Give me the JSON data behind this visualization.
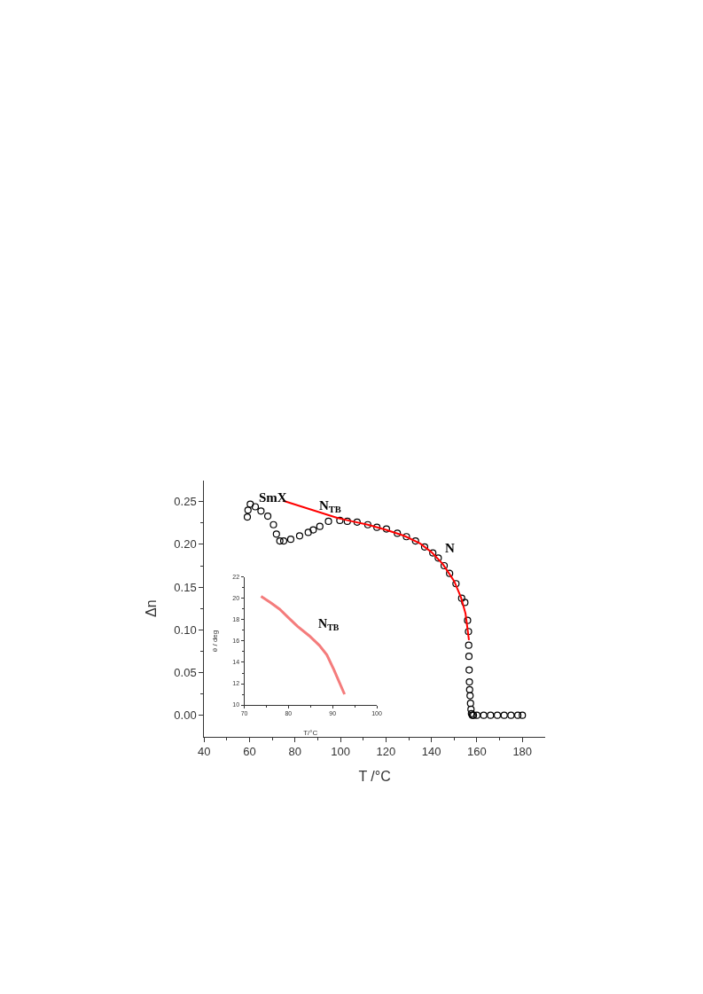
{
  "chart_data": [
    {
      "type": "scatter",
      "xlabel": "T /°C",
      "ylabel": "Δn",
      "xlim": [
        40,
        190
      ],
      "xticks": [
        40,
        60,
        80,
        100,
        120,
        140,
        160,
        180
      ],
      "ylim": [
        -0.025,
        0.275
      ],
      "yticks": [
        {
          "value": 0,
          "label": "0.00"
        },
        {
          "value": 0.05,
          "label": "0.05"
        },
        {
          "value": 0.1,
          "label": "0.10"
        },
        {
          "value": 0.15,
          "label": "0.15"
        },
        {
          "value": 0.2,
          "label": "0.20"
        },
        {
          "value": 0.25,
          "label": "0.25"
        }
      ],
      "series": [
        {
          "marker": "circle",
          "color": "#000000",
          "x": [
            59.0,
            59.3,
            60.3,
            62.5,
            65,
            68,
            70.5,
            71.8,
            73.3,
            75,
            78.1,
            82,
            85.8,
            88,
            90.9,
            94.7,
            99.7,
            103,
            107.3,
            112,
            116,
            120.2,
            125,
            129,
            133,
            137,
            140.6,
            143,
            145.6,
            148,
            150.8,
            153.3,
            154.7,
            155.9,
            156.3,
            156.4,
            156.5,
            156.6,
            156.7,
            156.8,
            157.0,
            157.2,
            157.4,
            157.6,
            158,
            158.5,
            160,
            163,
            166,
            169,
            172,
            175,
            178,
            180
          ],
          "values": [
            0.232,
            0.24,
            0.247,
            0.244,
            0.239,
            0.233,
            0.223,
            0.212,
            0.204,
            0.204,
            0.206,
            0.21,
            0.214,
            0.217,
            0.221,
            0.227,
            0.228,
            0.227,
            0.226,
            0.223,
            0.22,
            0.218,
            0.213,
            0.209,
            0.204,
            0.197,
            0.19,
            0.184,
            0.175,
            0.166,
            0.154,
            0.137,
            0.132,
            0.111,
            0.098,
            0.082,
            0.069,
            0.053,
            0.039,
            0.03,
            0.023,
            0.014,
            0.007,
            0.002,
            0,
            0,
            0,
            0,
            0,
            0,
            0,
            0,
            0,
            0
          ]
        },
        {
          "type": "line",
          "marker": "none",
          "color": "#ff0000",
          "x": [
            74.8,
            98.5,
            105,
            112,
            120,
            128,
            135,
            140,
            145,
            150,
            153,
            155,
            156.5
          ],
          "values": [
            0.251,
            0.231,
            0.227,
            0.223,
            0.217,
            0.21,
            0.201,
            0.191,
            0.177,
            0.157,
            0.138,
            0.119,
            0.088
          ]
        }
      ],
      "annotations": [
        "SmX",
        "N$_{TB}$",
        "N"
      ]
    },
    {
      "type": "line",
      "xlabel": "T/°C",
      "ylabel": "θ / deg",
      "xlim": [
        70,
        100
      ],
      "xticks": [
        70,
        80,
        90,
        100
      ],
      "ylim": [
        10,
        22
      ],
      "yticks": [
        10,
        12,
        14,
        16,
        18,
        20,
        22
      ],
      "series": [
        {
          "marker": "none",
          "color": "#f47c7c",
          "x": [
            73.8,
            76,
            78,
            80,
            82,
            84.7,
            87,
            88.7,
            90.3,
            92.7
          ],
          "values": [
            20.2,
            19.6,
            19.0,
            18.2,
            17.4,
            16.5,
            15.6,
            14.7,
            13.3,
            11.0
          ]
        }
      ],
      "annotations": [
        "N$_{TB}$"
      ]
    }
  ]
}
